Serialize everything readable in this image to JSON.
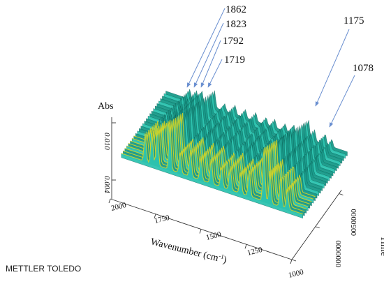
{
  "brand": "METTLER TOLEDO",
  "chart_data": {
    "type": "surface-3d",
    "xlabel": "Wavenumber (cm",
    "xlabel_sup": "-1",
    "xlabel_suffix": ")",
    "ylabel": "Time",
    "zlabel": "Abs",
    "x_ticks": [
      "2000",
      "1750",
      "1500",
      "1250",
      "1000"
    ],
    "x_range": [
      2000,
      950
    ],
    "y_ticks": [
      "0000000",
      "0050000"
    ],
    "z_ticks": [
      "0.004",
      "0.010"
    ],
    "annotations": [
      {
        "label": "1862",
        "wavenumber": 1862
      },
      {
        "label": "1823",
        "wavenumber": 1823
      },
      {
        "label": "1792",
        "wavenumber": 1792
      },
      {
        "label": "1719",
        "wavenumber": 1719
      },
      {
        "label": "1175",
        "wavenumber": 1175
      },
      {
        "label": "1078",
        "wavenumber": 1078
      }
    ],
    "colors": {
      "base": "#1a9a8a",
      "mid": "#2ec4b0",
      "peak": "#e8e020",
      "hot": "#e05010",
      "arrow": "#6a8fd0"
    }
  }
}
